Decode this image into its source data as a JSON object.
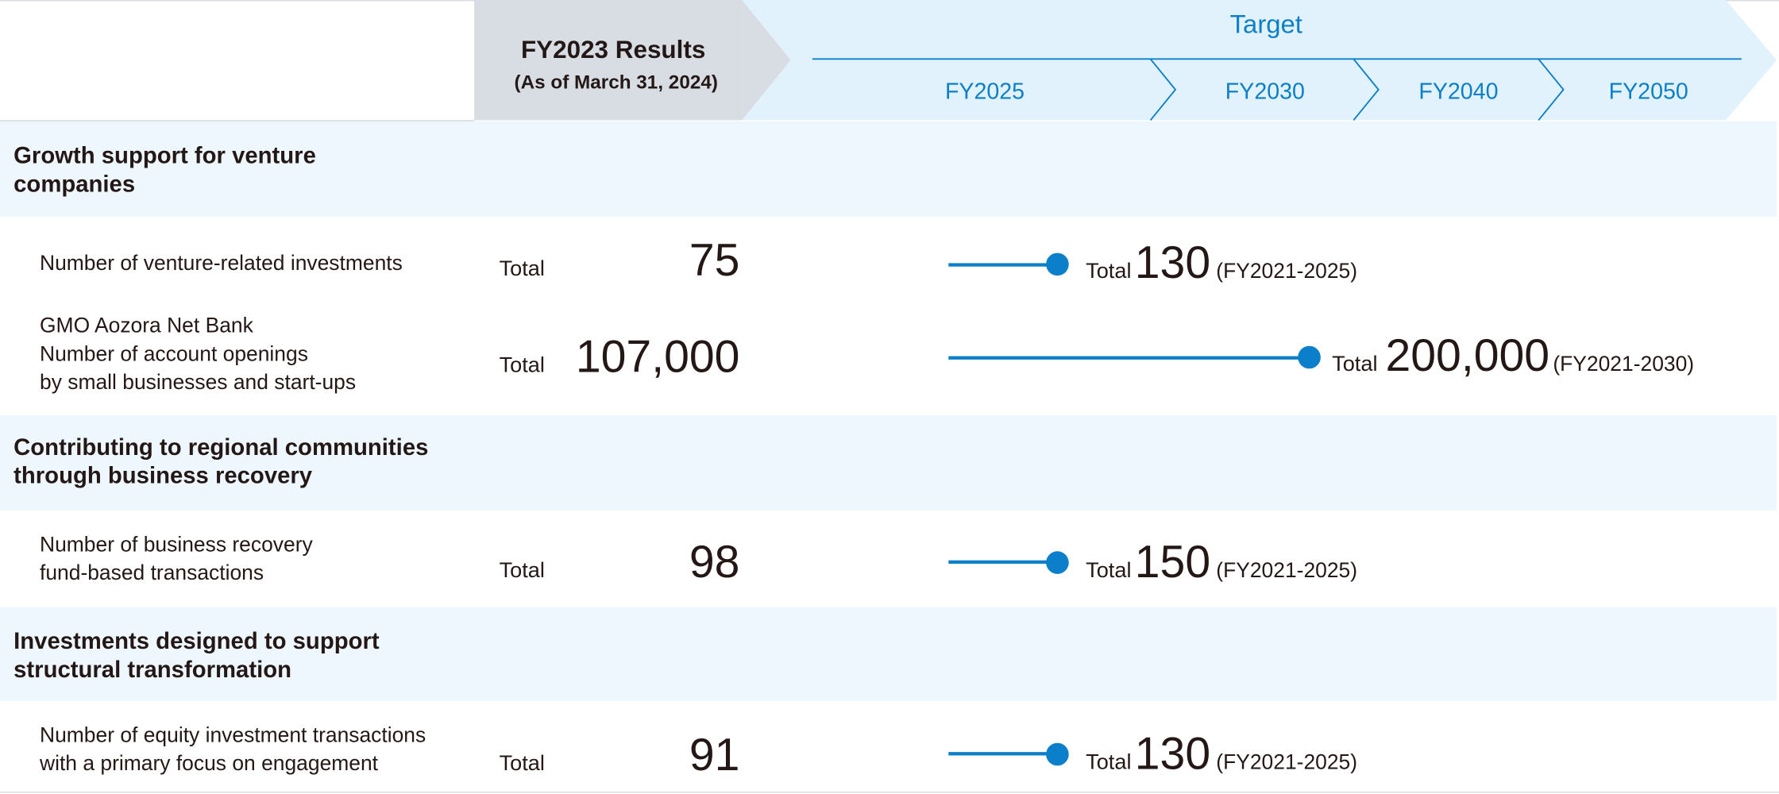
{
  "header": {
    "results_title": "FY2023 Results",
    "results_subtitle": "(As of March 31, 2024)",
    "target_title": "Target",
    "years": [
      "FY2025",
      "FY2030",
      "FY2040",
      "FY2050"
    ]
  },
  "colors": {
    "accent": "#0b7fc9",
    "header_band": "#e1f2fc",
    "results_band": "#d8dde3",
    "section_band": "#eff7fe",
    "text": "#231815"
  },
  "sections": [
    {
      "title": [
        "Growth support for venture",
        "companies"
      ],
      "metrics": [
        {
          "label": [
            "Number of venture-related investments"
          ],
          "result_prefix": "Total",
          "result": "75",
          "target_prefix": "Total",
          "target": "130",
          "period": "(FY2021-2025)",
          "target_year": "FY2025"
        },
        {
          "label": [
            "GMO Aozora Net Bank",
            "Number of account openings",
            "by small businesses and start-ups"
          ],
          "result_prefix": "Total",
          "result": "107,000",
          "target_prefix": "Total",
          "target": "200,000",
          "period": "(FY2021-2030)",
          "target_year": "FY2030"
        }
      ]
    },
    {
      "title": [
        "Contributing to regional communities",
        "through business recovery"
      ],
      "metrics": [
        {
          "label": [
            "Number of business recovery",
            "fund-based transactions"
          ],
          "result_prefix": "Total",
          "result": "98",
          "target_prefix": "Total",
          "target": "150",
          "period": "(FY2021-2025)",
          "target_year": "FY2025"
        }
      ]
    },
    {
      "title": [
        "Investments designed to support",
        "structural transformation"
      ],
      "metrics": [
        {
          "label": [
            "Number of equity investment transactions",
            "with a primary focus on engagement"
          ],
          "result_prefix": "Total",
          "result": "91",
          "target_prefix": "Total",
          "target": "130",
          "period": "(FY2021-2025)",
          "target_year": "FY2025"
        }
      ]
    }
  ]
}
